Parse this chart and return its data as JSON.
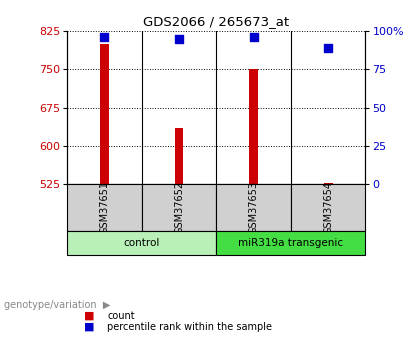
{
  "title": "GDS2066 / 265673_at",
  "samples": [
    "GSM37651",
    "GSM37652",
    "GSM37653",
    "GSM37654"
  ],
  "counts": [
    800,
    635,
    750,
    528
  ],
  "percentiles": [
    96,
    95,
    96,
    89
  ],
  "ylim_left": [
    525,
    825
  ],
  "ylim_right": [
    0,
    100
  ],
  "yticks_left": [
    525,
    600,
    675,
    750,
    825
  ],
  "yticks_right": [
    0,
    25,
    50,
    75,
    100
  ],
  "bar_color": "#cc0000",
  "marker_color": "#0000cc",
  "groups": [
    {
      "label": "control",
      "samples": [
        0,
        1
      ],
      "color": "#b8f0b8"
    },
    {
      "label": "miR319a transgenic",
      "samples": [
        2,
        3
      ],
      "color": "#44dd44"
    }
  ],
  "group_label": "genotype/variation",
  "legend_items": [
    {
      "label": "count",
      "color": "#cc0000"
    },
    {
      "label": "percentile rank within the sample",
      "color": "#0000cc"
    }
  ],
  "tick_label_color_left": "#cc0000",
  "tick_label_color_right": "#0000cc",
  "sample_box_color": "#d0d0d0",
  "bar_width": 0.12
}
